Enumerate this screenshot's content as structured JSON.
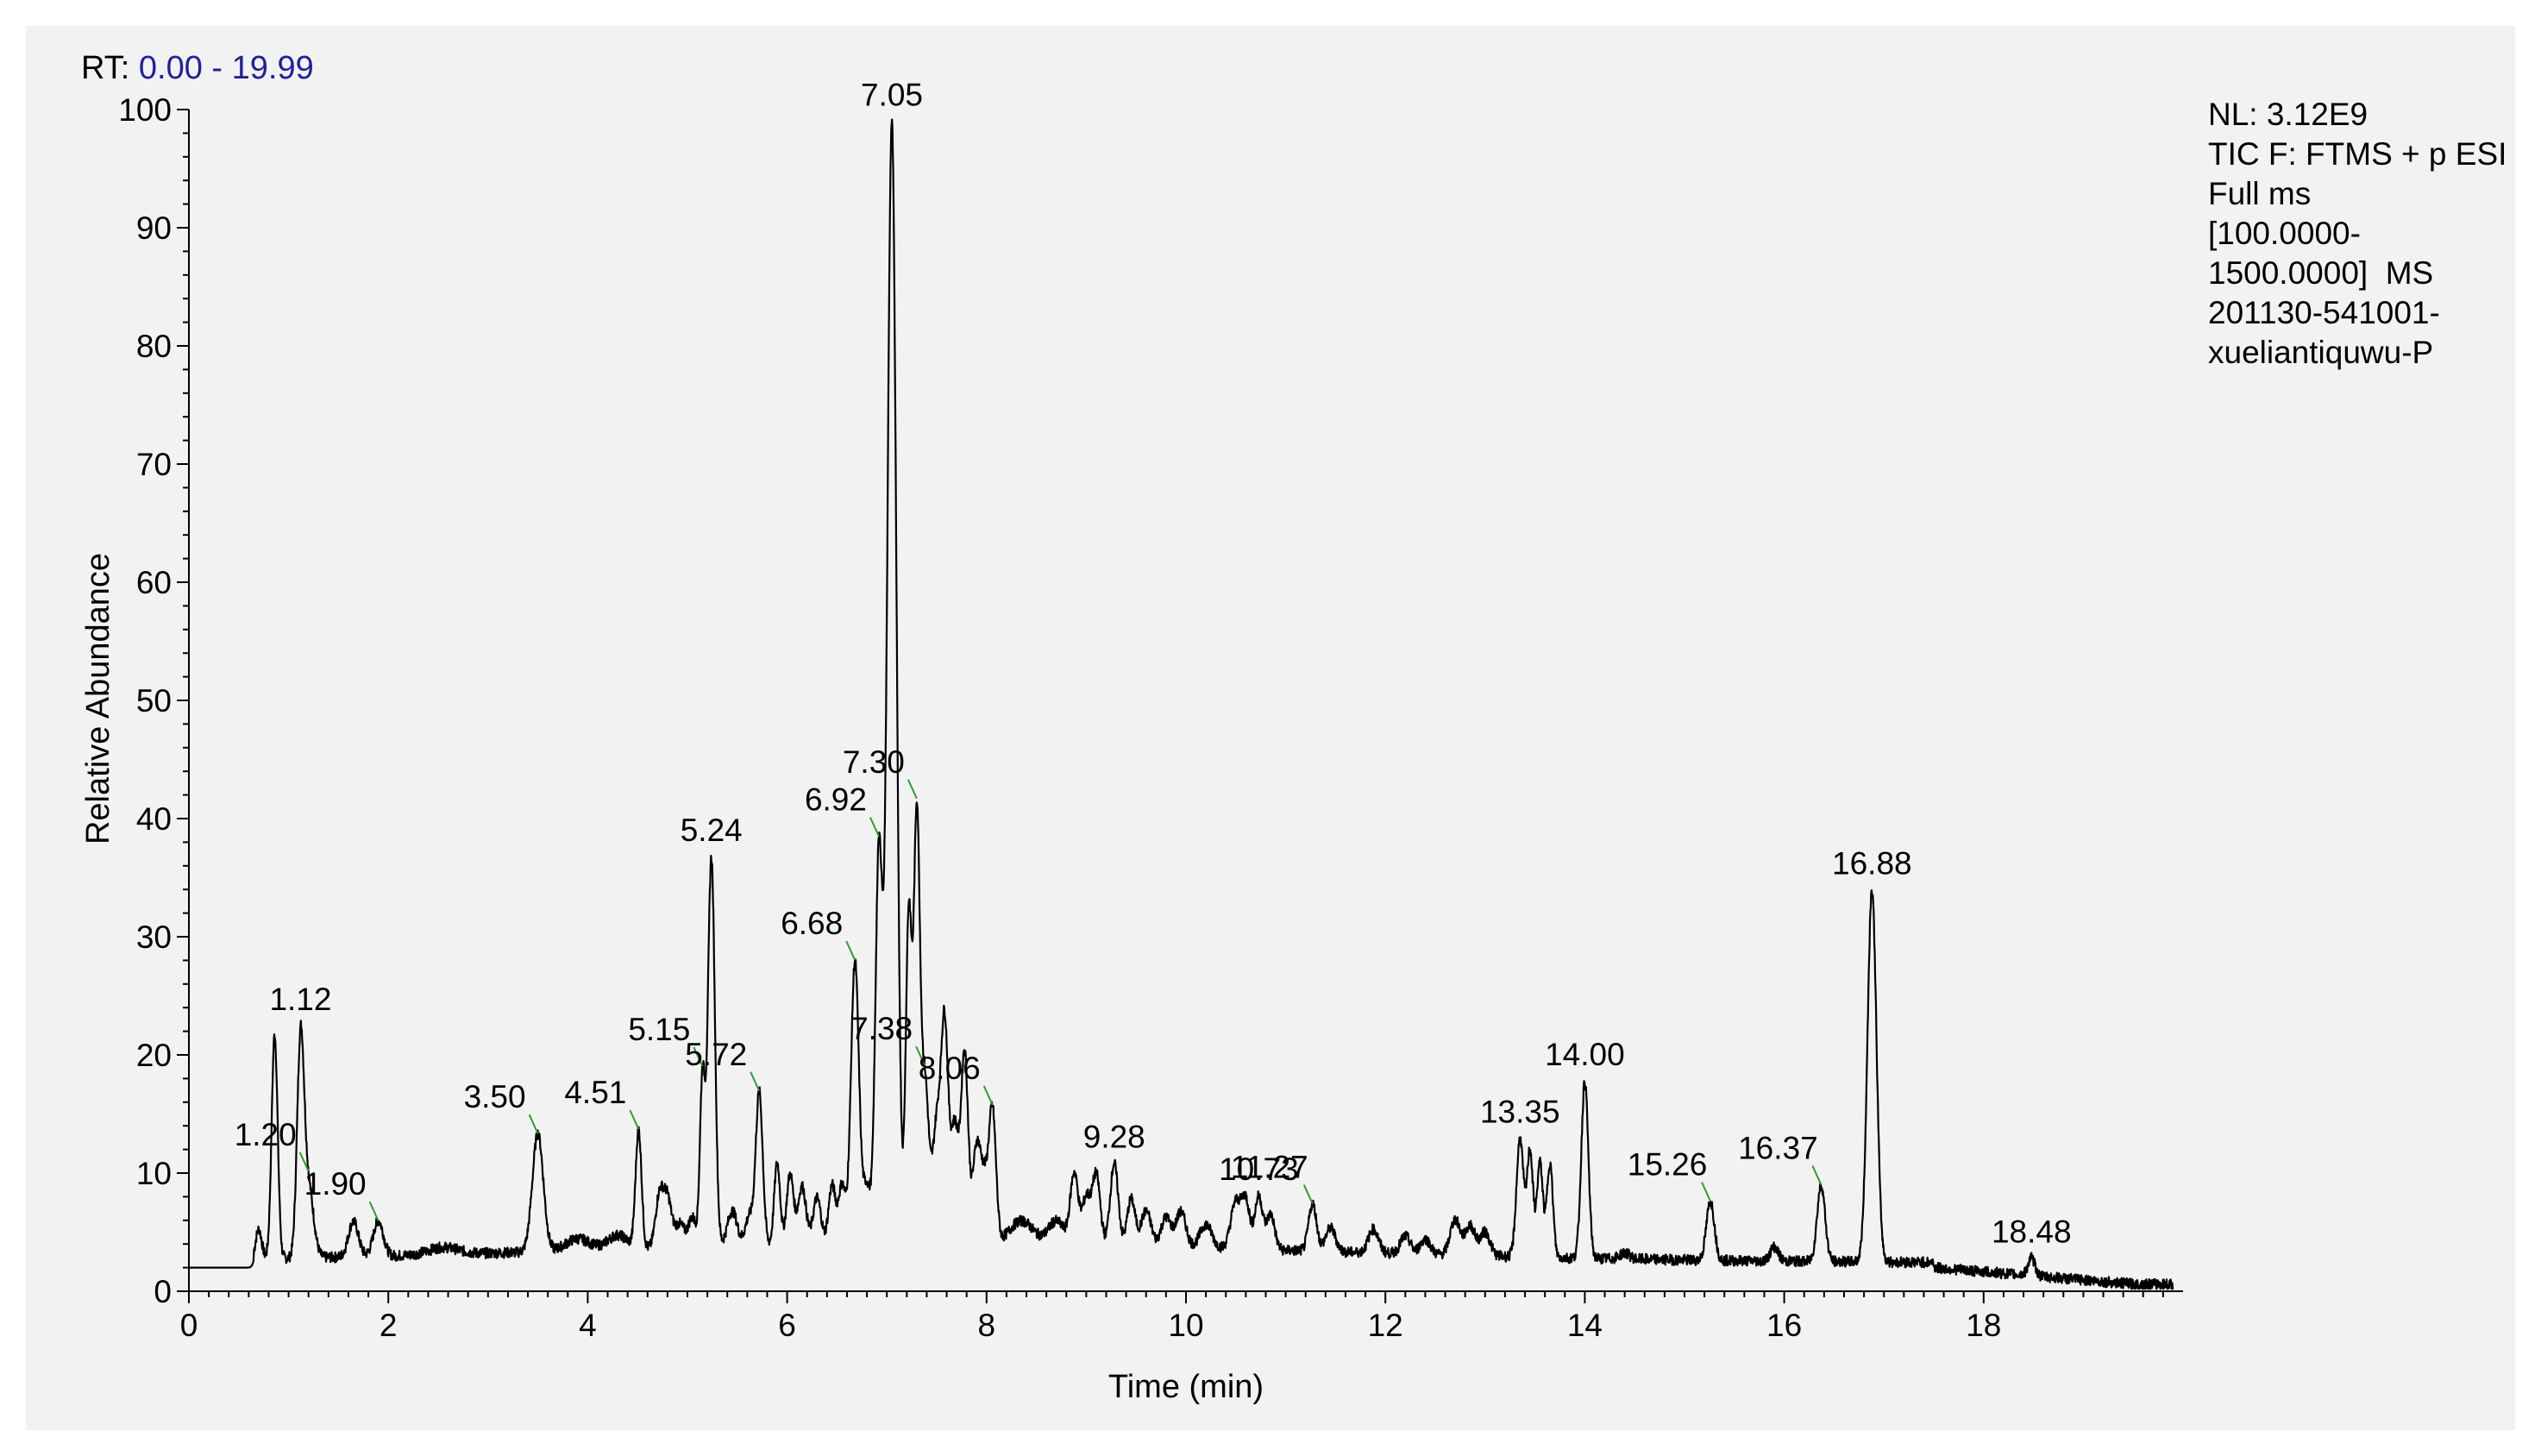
{
  "header": {
    "rt_prefix": "RT:",
    "rt_range": "0.00 - 19.99"
  },
  "info": {
    "lines": [
      "NL: 3.12E9",
      "TIC F: FTMS + p ESI",
      "Full ms",
      "[100.0000-",
      "1500.0000]  MS",
      "201130-541001-",
      "xueliantiquwu-P"
    ]
  },
  "chart_data": {
    "type": "line",
    "xlabel": "Time (min)",
    "ylabel": "Relative Abundance",
    "xlim": [
      0,
      20
    ],
    "ylim": [
      0,
      100
    ],
    "x_ticks": [
      0,
      2,
      4,
      6,
      8,
      10,
      12,
      14,
      16,
      18
    ],
    "y_ticks": [
      0,
      10,
      20,
      30,
      40,
      50,
      60,
      70,
      80,
      90,
      100
    ],
    "grid": false,
    "colors": {
      "trace": "#000000",
      "leader": "#2e9e2e",
      "rt_value": "#1f1fa0"
    },
    "baseline": 2,
    "peaks": [
      {
        "rt": 0.7,
        "h": 2.5,
        "w": 0.03
      },
      {
        "rt": 0.86,
        "h": 19,
        "w": 0.03
      },
      {
        "rt": 1.12,
        "h": 18,
        "w": 0.035
      },
      {
        "rt": 1.2,
        "h": 6,
        "w": 0.05
      },
      {
        "rt": 1.65,
        "h": 3,
        "w": 0.05
      },
      {
        "rt": 1.9,
        "h": 3,
        "w": 0.05
      },
      {
        "rt": 2.55,
        "h": 0.6,
        "w": 0.15
      },
      {
        "rt": 3.5,
        "h": 10,
        "w": 0.055
      },
      {
        "rt": 3.9,
        "h": 1.0,
        "w": 0.12
      },
      {
        "rt": 4.3,
        "h": 1.2,
        "w": 0.1
      },
      {
        "rt": 4.51,
        "h": 10,
        "w": 0.03
      },
      {
        "rt": 4.72,
        "h": 4.5,
        "w": 0.04
      },
      {
        "rt": 4.8,
        "h": 4.0,
        "w": 0.04
      },
      {
        "rt": 4.92,
        "h": 2.0,
        "w": 0.05
      },
      {
        "rt": 5.05,
        "h": 2.5,
        "w": 0.04
      },
      {
        "rt": 5.15,
        "h": 14,
        "w": 0.025
      },
      {
        "rt": 5.24,
        "h": 33,
        "w": 0.035
      },
      {
        "rt": 5.45,
        "h": 3,
        "w": 0.05
      },
      {
        "rt": 5.62,
        "h": 2.5,
        "w": 0.04
      },
      {
        "rt": 5.72,
        "h": 13,
        "w": 0.035
      },
      {
        "rt": 5.9,
        "h": 7,
        "w": 0.03
      },
      {
        "rt": 6.03,
        "h": 6,
        "w": 0.035
      },
      {
        "rt": 6.15,
        "h": 5,
        "w": 0.04
      },
      {
        "rt": 6.3,
        "h": 4,
        "w": 0.04
      },
      {
        "rt": 6.45,
        "h": 5,
        "w": 0.035
      },
      {
        "rt": 6.55,
        "h": 5,
        "w": 0.035
      },
      {
        "rt": 6.68,
        "h": 24,
        "w": 0.04
      },
      {
        "rt": 6.8,
        "h": 5,
        "w": 0.04
      },
      {
        "rt": 6.92,
        "h": 33,
        "w": 0.035
      },
      {
        "rt": 7.05,
        "h": 95,
        "w": 0.045
      },
      {
        "rt": 7.22,
        "h": 28,
        "w": 0.03
      },
      {
        "rt": 7.3,
        "h": 35,
        "w": 0.03
      },
      {
        "rt": 7.38,
        "h": 14,
        "w": 0.04
      },
      {
        "rt": 7.5,
        "h": 10,
        "w": 0.04
      },
      {
        "rt": 7.58,
        "h": 18,
        "w": 0.035
      },
      {
        "rt": 7.68,
        "h": 10,
        "w": 0.04
      },
      {
        "rt": 7.78,
        "h": 16,
        "w": 0.035
      },
      {
        "rt": 7.9,
        "h": 8,
        "w": 0.04
      },
      {
        "rt": 7.98,
        "h": 5,
        "w": 0.04
      },
      {
        "rt": 8.06,
        "h": 11,
        "w": 0.035
      },
      {
        "rt": 8.35,
        "h": 2,
        "w": 0.12
      },
      {
        "rt": 8.7,
        "h": 2,
        "w": 0.08
      },
      {
        "rt": 8.88,
        "h": 6,
        "w": 0.04
      },
      {
        "rt": 9.0,
        "h": 4,
        "w": 0.04
      },
      {
        "rt": 9.1,
        "h": 6,
        "w": 0.04
      },
      {
        "rt": 9.28,
        "h": 7,
        "w": 0.04
      },
      {
        "rt": 9.45,
        "h": 4,
        "w": 0.04
      },
      {
        "rt": 9.6,
        "h": 3,
        "w": 0.05
      },
      {
        "rt": 9.8,
        "h": 2.5,
        "w": 0.05
      },
      {
        "rt": 9.95,
        "h": 3,
        "w": 0.05
      },
      {
        "rt": 10.2,
        "h": 2,
        "w": 0.06
      },
      {
        "rt": 10.5,
        "h": 4,
        "w": 0.05
      },
      {
        "rt": 10.6,
        "h": 4,
        "w": 0.04
      },
      {
        "rt": 10.73,
        "h": 4.5,
        "w": 0.04
      },
      {
        "rt": 10.85,
        "h": 3,
        "w": 0.04
      },
      {
        "rt": 11.27,
        "h": 4,
        "w": 0.04
      },
      {
        "rt": 11.45,
        "h": 2,
        "w": 0.05
      },
      {
        "rt": 11.88,
        "h": 2,
        "w": 0.05
      },
      {
        "rt": 12.2,
        "h": 1.5,
        "w": 0.05
      },
      {
        "rt": 12.4,
        "h": 1.3,
        "w": 0.05
      },
      {
        "rt": 12.7,
        "h": 3,
        "w": 0.05
      },
      {
        "rt": 12.85,
        "h": 2.5,
        "w": 0.05
      },
      {
        "rt": 13.0,
        "h": 2,
        "w": 0.05
      },
      {
        "rt": 13.35,
        "h": 10,
        "w": 0.035
      },
      {
        "rt": 13.45,
        "h": 9,
        "w": 0.03
      },
      {
        "rt": 13.55,
        "h": 8,
        "w": 0.03
      },
      {
        "rt": 13.65,
        "h": 8,
        "w": 0.03
      },
      {
        "rt": 14.0,
        "h": 15,
        "w": 0.035
      },
      {
        "rt": 14.4,
        "h": 0.5,
        "w": 0.05
      },
      {
        "rt": 15.26,
        "h": 5,
        "w": 0.04
      },
      {
        "rt": 15.9,
        "h": 1.2,
        "w": 0.04
      },
      {
        "rt": 16.37,
        "h": 6.5,
        "w": 0.04
      },
      {
        "rt": 16.88,
        "h": 31.5,
        "w": 0.045
      },
      {
        "rt": 18.48,
        "h": 1.5,
        "w": 0.035
      }
    ],
    "labels": [
      {
        "rt": 1.12,
        "text": "1.12"
      },
      {
        "rt": 1.2,
        "text": "1.20",
        "leader": true
      },
      {
        "rt": 1.9,
        "text": "1.90",
        "leader": true
      },
      {
        "rt": 3.5,
        "text": "3.50",
        "leader": true
      },
      {
        "rt": 4.51,
        "text": "4.51",
        "leader": true
      },
      {
        "rt": 5.15,
        "text": "5.15",
        "leader": true
      },
      {
        "rt": 5.24,
        "text": "5.24"
      },
      {
        "rt": 5.72,
        "text": "5.72",
        "leader": true
      },
      {
        "rt": 6.68,
        "text": "6.68",
        "leader": true
      },
      {
        "rt": 6.92,
        "text": "6.92",
        "leader": true
      },
      {
        "rt": 7.05,
        "text": "7.05"
      },
      {
        "rt": 7.3,
        "text": "7.30",
        "leader": true
      },
      {
        "rt": 7.38,
        "text": "7.38",
        "leader": true
      },
      {
        "rt": 8.06,
        "text": "8.06",
        "leader": true
      },
      {
        "rt": 9.28,
        "text": "9.28"
      },
      {
        "rt": 10.73,
        "text": "10.73"
      },
      {
        "rt": 11.27,
        "text": "11.27",
        "leader": true
      },
      {
        "rt": 13.35,
        "text": "13.35"
      },
      {
        "rt": 14.0,
        "text": "14.00"
      },
      {
        "rt": 15.26,
        "text": "15.26",
        "leader": true
      },
      {
        "rt": 16.37,
        "text": "16.37",
        "leader": true
      },
      {
        "rt": 16.88,
        "text": "16.88"
      },
      {
        "rt": 18.48,
        "text": "18.48"
      }
    ]
  }
}
